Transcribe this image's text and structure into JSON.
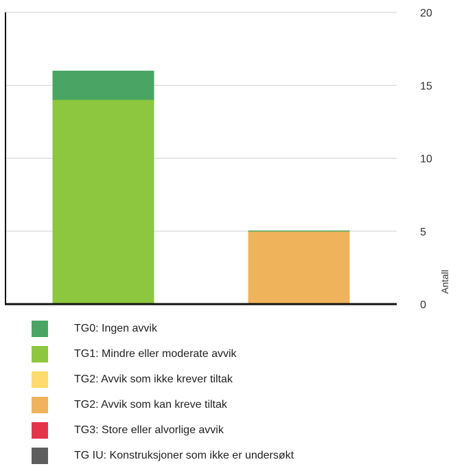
{
  "chart_data": {
    "type": "bar",
    "stacked": true,
    "categories": [
      "",
      ""
    ],
    "ylabel": "Antall",
    "ylim": [
      0,
      20
    ],
    "yticks": [
      0,
      5,
      10,
      15,
      20
    ],
    "y_axis_side": "right",
    "grid": true,
    "legend_placement": "bottom",
    "series": [
      {
        "name": "TG0: Ingen avvik",
        "color": "#4aa564",
        "values": [
          2,
          0
        ]
      },
      {
        "name": "TG1: Mindre eller moderate avvik",
        "color": "#8dc63f",
        "values": [
          14,
          0
        ]
      },
      {
        "name": "TG2: Avvik som ikke krever tiltak",
        "color": "#ffdb6e",
        "values": [
          0,
          0
        ]
      },
      {
        "name": "TG2: Avvik som kan kreve tiltak",
        "color": "#efb35c",
        "values": [
          0,
          5
        ]
      },
      {
        "name": "TG3: Store eller alvorlige avvik",
        "color": "#e4344a",
        "values": [
          0,
          0
        ]
      },
      {
        "name": "TG IU: Konstruksjoner som ikke er undersøkt",
        "color": "#5e5e5e",
        "values": [
          0,
          0
        ]
      }
    ]
  }
}
